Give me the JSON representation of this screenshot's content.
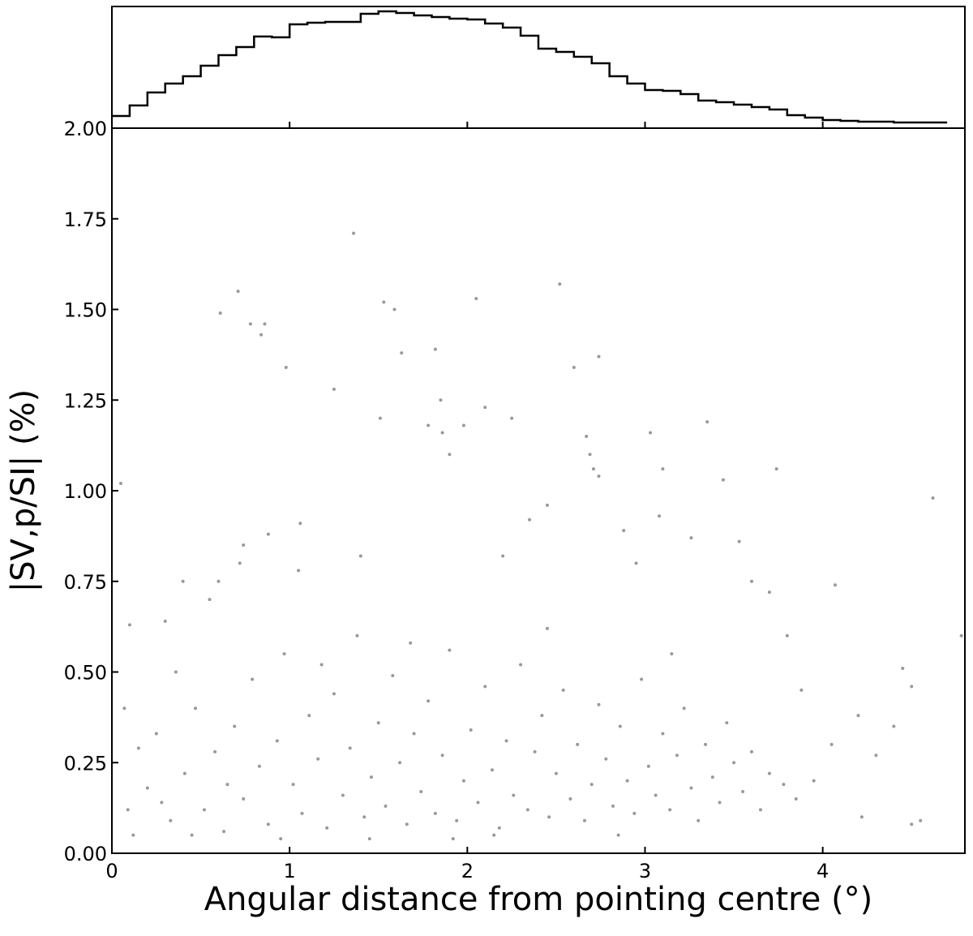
{
  "chart_data": [
    {
      "type": "histogram",
      "bins": [
        0,
        0.1,
        0.2,
        0.3,
        0.4,
        0.5,
        0.6,
        0.7,
        0.8,
        0.9,
        1.0,
        1.1,
        1.2,
        1.3,
        1.4,
        1.5,
        1.6,
        1.7,
        1.8,
        1.9,
        2.0,
        2.1,
        2.2,
        2.3,
        2.4,
        2.5,
        2.6,
        2.7,
        2.8,
        2.9,
        3.0,
        3.1,
        3.2,
        3.3,
        3.4,
        3.5,
        3.6,
        3.7,
        3.8,
        3.9,
        4.0,
        4.1,
        4.2,
        4.3,
        4.4,
        4.5,
        4.6,
        4.7
      ],
      "values": [
        15,
        28,
        44,
        55,
        64,
        77,
        90,
        100,
        113,
        112,
        128,
        130,
        131,
        131,
        141,
        144,
        142,
        139,
        137,
        135,
        134,
        129,
        124,
        114,
        98,
        94,
        88,
        80,
        64,
        55,
        47,
        46,
        42,
        34,
        32,
        29,
        26,
        23,
        16,
        13,
        10,
        9,
        8,
        8,
        7,
        7,
        7
      ],
      "color": "#000000",
      "xlim": [
        0,
        4.8
      ],
      "ylim": [
        0,
        150
      ],
      "xticks": [
        1,
        2,
        3,
        4
      ]
    },
    {
      "type": "scatter",
      "xlabel": "Angular distance from pointing centre (°)",
      "ylabel": "|SV,p/SI| (%)",
      "color": "#555555",
      "xlim": [
        0,
        4.8
      ],
      "ylim": [
        0,
        2
      ],
      "xticks": [
        0,
        1,
        2,
        3,
        4
      ],
      "yticks": [
        {
          "value": 0,
          "label": "0.00"
        },
        {
          "value": 0.25,
          "label": "0.25"
        },
        {
          "value": 0.5,
          "label": "0.50"
        },
        {
          "value": 0.75,
          "label": "0.75"
        },
        {
          "value": 1,
          "label": "1.00"
        },
        {
          "value": 1.25,
          "label": "1.25"
        },
        {
          "value": 1.5,
          "label": "1.50"
        },
        {
          "value": 1.75,
          "label": "1.75"
        },
        {
          "value": 2,
          "label": "2.00"
        }
      ],
      "x": [
        1.36,
        0.71,
        0.61,
        2.52,
        1.53,
        2.05,
        1.59,
        0.78,
        0.86,
        0.84,
        0.98,
        1.82,
        1.63,
        2.6,
        2.74,
        1.25,
        1.51,
        1.85,
        2.1,
        1.78,
        1.98,
        1.86,
        2.25,
        2.67,
        3.03,
        3.35,
        1.9,
        2.69,
        2.71,
        3.1,
        3.74,
        2.74,
        3.44,
        4.62,
        0.05,
        1.06,
        2.35,
        2.45,
        3.08,
        2.88,
        0.88,
        0.74,
        3.26,
        3.53,
        0.72,
        1.05,
        4.07,
        4.78,
        4.5,
        4.45,
        4.2,
        4.4,
        4.55,
        4.5,
        4.22,
        3.95,
        4.05,
        3.88,
        4.3,
        3.8,
        0.4,
        0.6,
        0.55,
        3.6,
        3.7,
        2.95,
        2.2,
        1.4,
        0.3,
        0.1,
        0.12,
        0.2,
        0.25,
        0.33,
        0.41,
        0.47,
        0.52,
        0.58,
        0.63,
        0.69,
        0.74,
        0.79,
        0.83,
        0.88,
        0.93,
        0.97,
        1.02,
        1.07,
        1.11,
        1.16,
        1.21,
        1.25,
        1.3,
        1.34,
        1.38,
        1.42,
        1.46,
        1.5,
        1.54,
        1.58,
        1.62,
        1.66,
        1.7,
        1.74,
        1.78,
        1.82,
        1.86,
        1.9,
        1.94,
        1.98,
        2.02,
        2.06,
        2.1,
        2.14,
        2.18,
        2.22,
        2.26,
        2.3,
        2.34,
        2.38,
        2.42,
        2.46,
        2.5,
        2.54,
        2.58,
        2.62,
        2.66,
        2.7,
        2.74,
        2.78,
        2.82,
        2.86,
        2.9,
        2.94,
        2.98,
        3.02,
        3.06,
        3.1,
        3.14,
        3.18,
        3.22,
        3.26,
        3.3,
        3.34,
        3.38,
        3.42,
        3.46,
        3.5,
        3.55,
        3.6,
        3.65,
        3.7,
        3.78,
        3.85,
        0.15,
        0.28,
        0.36,
        0.45,
        0.65,
        0.95,
        1.18,
        1.45,
        1.68,
        1.92,
        2.15,
        2.45,
        2.85,
        3.15,
        0.07,
        0.09
      ],
      "values": [
        1.71,
        1.55,
        1.49,
        1.57,
        1.52,
        1.53,
        1.5,
        1.46,
        1.46,
        1.43,
        1.34,
        1.39,
        1.38,
        1.34,
        1.37,
        1.28,
        1.2,
        1.25,
        1.23,
        1.18,
        1.18,
        1.16,
        1.2,
        1.15,
        1.16,
        1.19,
        1.1,
        1.1,
        1.06,
        1.06,
        1.06,
        1.04,
        1.03,
        0.98,
        1.02,
        0.91,
        0.92,
        0.96,
        0.93,
        0.89,
        0.88,
        0.85,
        0.87,
        0.86,
        0.8,
        0.78,
        0.74,
        0.6,
        0.46,
        0.51,
        0.38,
        0.35,
        0.09,
        0.08,
        0.1,
        0.2,
        0.3,
        0.45,
        0.27,
        0.6,
        0.75,
        0.75,
        0.7,
        0.75,
        0.72,
        0.8,
        0.82,
        0.82,
        0.64,
        0.63,
        0.05,
        0.18,
        0.33,
        0.09,
        0.22,
        0.4,
        0.12,
        0.28,
        0.06,
        0.35,
        0.15,
        0.48,
        0.24,
        0.08,
        0.31,
        0.55,
        0.19,
        0.11,
        0.38,
        0.26,
        0.07,
        0.44,
        0.16,
        0.29,
        0.6,
        0.1,
        0.21,
        0.36,
        0.13,
        0.49,
        0.25,
        0.08,
        0.33,
        0.17,
        0.42,
        0.11,
        0.27,
        0.56,
        0.09,
        0.2,
        0.34,
        0.14,
        0.46,
        0.23,
        0.07,
        0.31,
        0.16,
        0.52,
        0.12,
        0.28,
        0.38,
        0.1,
        0.22,
        0.45,
        0.15,
        0.3,
        0.09,
        0.19,
        0.41,
        0.26,
        0.13,
        0.35,
        0.2,
        0.11,
        0.48,
        0.24,
        0.16,
        0.33,
        0.12,
        0.27,
        0.4,
        0.18,
        0.09,
        0.3,
        0.21,
        0.14,
        0.36,
        0.25,
        0.17,
        0.28,
        0.12,
        0.22,
        0.19,
        0.15,
        0.29,
        0.14,
        0.5,
        0.05,
        0.19,
        0.04,
        0.52,
        0.04,
        0.58,
        0.04,
        0.05,
        0.62,
        0.05,
        0.55,
        0.4,
        0.12
      ]
    }
  ]
}
